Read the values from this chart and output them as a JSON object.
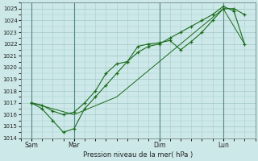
{
  "background_color": "#cce8e8",
  "grid_color": "#aacccc",
  "line_color": "#1a6b1a",
  "marker_color": "#1a6b1a",
  "xlabel": "Pression niveau de la mer( hPa )",
  "ylim": [
    1014,
    1025.5
  ],
  "yticks": [
    1014,
    1015,
    1016,
    1017,
    1018,
    1019,
    1020,
    1021,
    1022,
    1023,
    1024,
    1025
  ],
  "xtick_labels": [
    "Sam",
    "Mar",
    "Dim",
    "Lun"
  ],
  "xtick_positions": [
    0.5,
    2.5,
    6.5,
    9.5
  ],
  "total_days": 11,
  "series1_x": [
    0.5,
    1.0,
    1.5,
    2.0,
    2.5,
    3.0,
    3.5,
    4.0,
    4.5,
    5.0,
    5.5,
    6.0,
    6.5,
    7.0,
    7.5,
    8.0,
    8.5,
    9.0,
    9.5,
    10.0,
    10.5
  ],
  "series1_y": [
    1017.0,
    1016.8,
    1016.3,
    1016.0,
    1016.2,
    1017.0,
    1018.0,
    1019.5,
    1020.3,
    1020.5,
    1021.8,
    1022.0,
    1022.1,
    1022.3,
    1021.5,
    1022.2,
    1023.0,
    1024.0,
    1025.0,
    1025.0,
    1024.5
  ],
  "series2_x": [
    0.5,
    1.0,
    1.5,
    2.0,
    2.5,
    3.0,
    3.5,
    4.0,
    4.5,
    5.0,
    5.5,
    6.0,
    6.5,
    7.0,
    7.5,
    8.0,
    8.5,
    9.0,
    9.5,
    10.0,
    10.5
  ],
  "series2_y": [
    1017.0,
    1016.5,
    1015.5,
    1014.5,
    1014.8,
    1016.5,
    1017.5,
    1018.5,
    1019.5,
    1020.5,
    1021.3,
    1021.8,
    1022.0,
    1022.5,
    1023.0,
    1023.5,
    1024.0,
    1024.5,
    1025.2,
    1024.8,
    1022.0
  ],
  "series3_x": [
    0.5,
    2.5,
    4.5,
    6.5,
    9.5,
    10.5
  ],
  "series3_y": [
    1017.0,
    1016.0,
    1017.5,
    1020.5,
    1025.0,
    1022.0
  ]
}
